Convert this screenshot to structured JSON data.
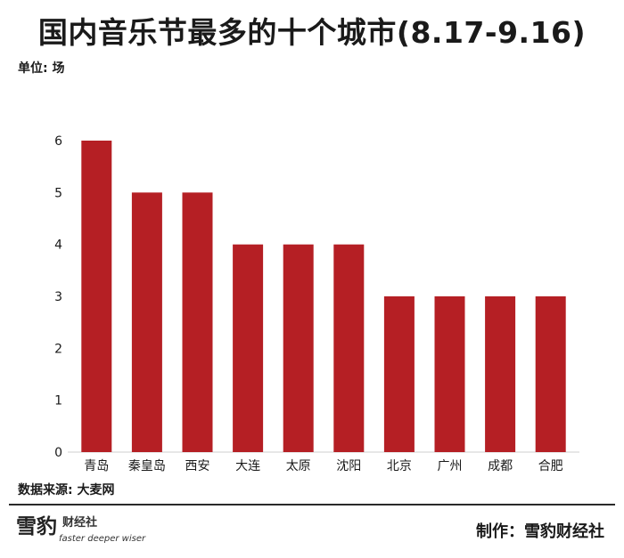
{
  "header": {
    "title": "国内音乐节最多的十个城市(8.17-9.16)",
    "unit": "单位: 场"
  },
  "footer": {
    "source": "数据来源: 大麦网",
    "credit": "制作：雪豹财经社",
    "logo_cn": "雪豹",
    "logo_sub": "财经社",
    "logo_en": "faster deeper wiser"
  },
  "chart_data": {
    "type": "bar",
    "title": "国内音乐节最多的十个城市(8.17-9.16)",
    "ylabel": "单位: 场",
    "xlabel": "",
    "categories": [
      "青岛",
      "秦皇岛",
      "西安",
      "大连",
      "太原",
      "沈阳",
      "北京",
      "广州",
      "成都",
      "合肥"
    ],
    "values": [
      6,
      5,
      5,
      4,
      4,
      4,
      3,
      3,
      3,
      3
    ],
    "ylim": [
      0,
      6
    ],
    "yticks": [
      0,
      1,
      2,
      3,
      4,
      5,
      6
    ],
    "grid": false,
    "legend": "none",
    "bar_color": "#b51f24"
  }
}
